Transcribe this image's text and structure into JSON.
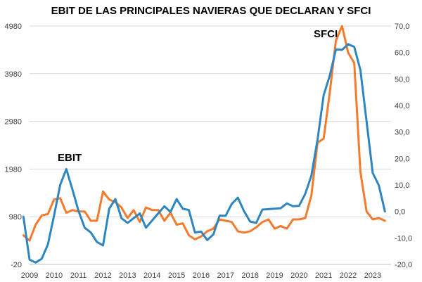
{
  "chart_data": {
    "type": "line",
    "title": "EBIT DE LAS PRINCIPALES NAVIERAS QUE DECLARAN Y SFCI",
    "x_tick_labels": [
      "2009",
      "2010",
      "2011",
      "2012",
      "2013",
      "2014",
      "2015",
      "2016",
      "2017",
      "2018",
      "2019",
      "2020",
      "2021",
      "2022",
      "2023"
    ],
    "x_range": [
      2009.0,
      2023.75
    ],
    "y_left": {
      "ticks": [
        "-20",
        "980",
        "1980",
        "2980",
        "3980",
        "4980"
      ],
      "ylim": [
        -20,
        4980
      ]
    },
    "y_right": {
      "ticks": [
        "-20,0",
        "-10,0",
        "0,0",
        "10,0",
        "20,0",
        "30,0",
        "40,0",
        "50,0",
        "60,0",
        "70,0"
      ],
      "ylim": [
        -20,
        70
      ]
    },
    "annotations": [
      {
        "text": "EBIT",
        "series": "EBIT"
      },
      {
        "text": "SFCI",
        "series": "SFCI"
      }
    ],
    "series": [
      {
        "name": "EBIT",
        "axis": "left",
        "color": "#2e86c1",
        "x": [
          2008.75,
          2009.0,
          2009.25,
          2009.5,
          2009.75,
          2010.0,
          2010.25,
          2010.5,
          2010.75,
          2011.0,
          2011.25,
          2011.5,
          2011.75,
          2012.0,
          2012.25,
          2012.5,
          2012.75,
          2013.0,
          2013.25,
          2013.5,
          2013.75,
          2014.0,
          2014.25,
          2014.5,
          2014.75,
          2015.0,
          2015.25,
          2015.5,
          2015.75,
          2016.0,
          2016.25,
          2016.5,
          2016.75,
          2017.0,
          2017.25,
          2017.5,
          2017.75,
          2018.0,
          2018.25,
          2018.5,
          2018.75,
          2019.0,
          2019.25,
          2019.5,
          2019.75,
          2020.0,
          2020.25,
          2020.5,
          2020.75,
          2021.0,
          2021.25,
          2021.5,
          2021.75,
          2022.0,
          2022.25,
          2022.5,
          2022.75,
          2023.0,
          2023.25,
          2023.5
        ],
        "values": [
          980,
          80,
          20,
          100,
          400,
          1000,
          1650,
          1980,
          1550,
          1100,
          750,
          650,
          450,
          380,
          1150,
          1350,
          950,
          850,
          950,
          1050,
          750,
          900,
          1050,
          1200,
          1080,
          1350,
          1150,
          1120,
          650,
          670,
          490,
          610,
          1000,
          1000,
          1250,
          1380,
          1100,
          880,
          850,
          1130,
          1140,
          1150,
          1160,
          1260,
          1200,
          1210,
          1460,
          1840,
          2600,
          3530,
          3940,
          4490,
          4480,
          4600,
          4540,
          4060,
          2980,
          1900,
          1640,
          1090
        ]
      },
      {
        "name": "SFCI",
        "axis": "right",
        "color": "#f47a2c",
        "x": [
          2008.75,
          2009.0,
          2009.25,
          2009.5,
          2009.75,
          2010.0,
          2010.25,
          2010.5,
          2010.75,
          2011.0,
          2011.25,
          2011.5,
          2011.75,
          2012.0,
          2012.25,
          2012.5,
          2012.75,
          2013.0,
          2013.25,
          2013.5,
          2013.75,
          2014.0,
          2014.25,
          2014.5,
          2014.75,
          2015.0,
          2015.25,
          2015.5,
          2015.75,
          2016.0,
          2016.25,
          2016.5,
          2016.75,
          2017.0,
          2017.25,
          2017.5,
          2017.75,
          2018.0,
          2018.25,
          2018.5,
          2018.75,
          2019.0,
          2019.25,
          2019.5,
          2019.75,
          2020.0,
          2020.25,
          2020.5,
          2020.75,
          2021.0,
          2021.25,
          2021.5,
          2021.75,
          2022.0,
          2022.25,
          2022.5,
          2022.75,
          2023.0,
          2023.25,
          2023.5
        ],
        "values": [
          -9.0,
          -11.0,
          -5.0,
          -1.5,
          -1.0,
          4.5,
          5.0,
          -0.5,
          0.5,
          0.0,
          0.0,
          -3.5,
          -3.5,
          7.5,
          4.5,
          3.5,
          1.5,
          -2.5,
          0.5,
          -4.0,
          1.5,
          0.5,
          0.5,
          -3.5,
          -0.5,
          -5.0,
          -4.5,
          -9.0,
          -10.5,
          -9.5,
          -7.5,
          -6.5,
          -3.0,
          -3.5,
          -4.0,
          -7.5,
          -8.0,
          -7.5,
          -6.0,
          -4.0,
          -3.0,
          -6.5,
          -5.5,
          -6.5,
          -3.0,
          -3.0,
          -2.5,
          6.0,
          26.0,
          27.5,
          45.0,
          64.5,
          70.0,
          60.0,
          56.0,
          15.0,
          0.0,
          -3.0,
          -2.5,
          -3.5
        ]
      }
    ]
  }
}
